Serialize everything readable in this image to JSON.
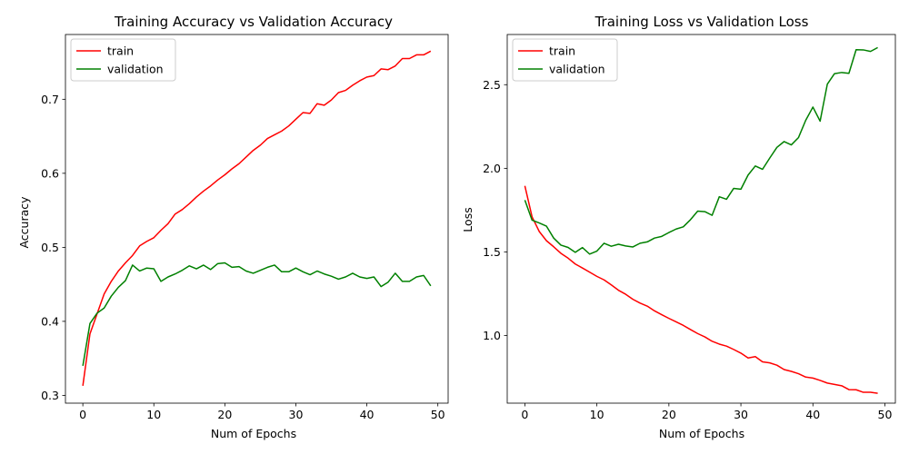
{
  "chart_data": [
    {
      "type": "line",
      "title": "Training Accuracy vs Validation Accuracy",
      "xlabel": "Num of Epochs",
      "ylabel": "Accuracy",
      "xlim": [
        -2.45,
        51.45
      ],
      "ylim": [
        0.2895,
        0.7875
      ],
      "xticks": [
        0,
        10,
        20,
        30,
        40,
        50
      ],
      "yticks": [
        0.3,
        0.4,
        0.5,
        0.6,
        0.7
      ],
      "ytick_labels": [
        "0.3",
        "0.4",
        "0.5",
        "0.6",
        "0.7"
      ],
      "legend_position": "upper-left",
      "grid": false,
      "x": [
        0,
        1,
        2,
        3,
        4,
        5,
        6,
        7,
        8,
        9,
        10,
        11,
        12,
        13,
        14,
        15,
        16,
        17,
        18,
        19,
        20,
        21,
        22,
        23,
        24,
        25,
        26,
        27,
        28,
        29,
        30,
        31,
        32,
        33,
        34,
        35,
        36,
        37,
        38,
        39,
        40,
        41,
        42,
        43,
        44,
        45,
        46,
        47,
        48,
        49
      ],
      "series": [
        {
          "name": "train",
          "color": "#ff0000",
          "values": [
            0.313,
            0.383,
            0.41,
            0.437,
            0.454,
            0.468,
            0.479,
            0.489,
            0.502,
            0.508,
            0.513,
            0.523,
            0.532,
            0.545,
            0.551,
            0.559,
            0.568,
            0.576,
            0.583,
            0.591,
            0.598,
            0.606,
            0.613,
            0.622,
            0.631,
            0.638,
            0.647,
            0.652,
            0.657,
            0.664,
            0.673,
            0.682,
            0.681,
            0.694,
            0.692,
            0.699,
            0.709,
            0.712,
            0.719,
            0.725,
            0.73,
            0.732,
            0.741,
            0.74,
            0.745,
            0.755,
            0.755,
            0.76,
            0.76,
            0.765
          ]
        },
        {
          "name": "validation",
          "color": "#008000",
          "values": [
            0.34,
            0.397,
            0.411,
            0.418,
            0.434,
            0.446,
            0.455,
            0.476,
            0.468,
            0.472,
            0.471,
            0.454,
            0.46,
            0.464,
            0.469,
            0.475,
            0.471,
            0.476,
            0.47,
            0.478,
            0.479,
            0.473,
            0.474,
            0.468,
            0.465,
            0.469,
            0.473,
            0.476,
            0.467,
            0.467,
            0.472,
            0.467,
            0.463,
            0.468,
            0.464,
            0.461,
            0.457,
            0.46,
            0.465,
            0.46,
            0.458,
            0.46,
            0.447,
            0.453,
            0.465,
            0.454,
            0.454,
            0.46,
            0.462,
            0.448
          ]
        }
      ]
    },
    {
      "type": "line",
      "title": "Training Loss vs Validation Loss",
      "xlabel": "Num of Epochs",
      "ylabel": "Loss",
      "xlim": [
        -2.45,
        51.45
      ],
      "ylim": [
        0.596,
        2.8
      ],
      "xticks": [
        0,
        10,
        20,
        30,
        40,
        50
      ],
      "yticks": [
        1.0,
        1.5,
        2.0,
        2.5
      ],
      "ytick_labels": [
        "1.0",
        "1.5",
        "2.0",
        "2.5"
      ],
      "legend_position": "upper-left",
      "grid": false,
      "x": [
        0,
        1,
        2,
        3,
        4,
        5,
        6,
        7,
        8,
        9,
        10,
        11,
        12,
        13,
        14,
        15,
        16,
        17,
        18,
        19,
        20,
        21,
        22,
        23,
        24,
        25,
        26,
        27,
        28,
        29,
        30,
        31,
        32,
        33,
        34,
        35,
        36,
        37,
        38,
        39,
        40,
        41,
        42,
        43,
        44,
        45,
        46,
        47,
        48,
        49
      ],
      "series": [
        {
          "name": "train",
          "color": "#ff0000",
          "values": [
            1.895,
            1.71,
            1.622,
            1.567,
            1.531,
            1.492,
            1.463,
            1.428,
            1.404,
            1.379,
            1.354,
            1.333,
            1.303,
            1.271,
            1.247,
            1.217,
            1.194,
            1.176,
            1.148,
            1.125,
            1.103,
            1.082,
            1.061,
            1.036,
            1.012,
            0.992,
            0.966,
            0.949,
            0.937,
            0.917,
            0.895,
            0.866,
            0.874,
            0.843,
            0.837,
            0.823,
            0.797,
            0.786,
            0.772,
            0.752,
            0.746,
            0.732,
            0.716,
            0.708,
            0.7,
            0.677,
            0.676,
            0.661,
            0.661,
            0.655
          ]
        },
        {
          "name": "validation",
          "color": "#008000",
          "values": [
            1.81,
            1.69,
            1.673,
            1.654,
            1.583,
            1.541,
            1.527,
            1.498,
            1.526,
            1.487,
            1.505,
            1.552,
            1.534,
            1.546,
            1.536,
            1.53,
            1.552,
            1.56,
            1.583,
            1.593,
            1.616,
            1.637,
            1.65,
            1.693,
            1.744,
            1.741,
            1.719,
            1.83,
            1.815,
            1.88,
            1.875,
            1.96,
            2.014,
            1.994,
            2.061,
            2.125,
            2.16,
            2.14,
            2.184,
            2.287,
            2.366,
            2.282,
            2.503,
            2.566,
            2.573,
            2.568,
            2.709,
            2.708,
            2.699,
            2.722
          ]
        }
      ]
    }
  ]
}
